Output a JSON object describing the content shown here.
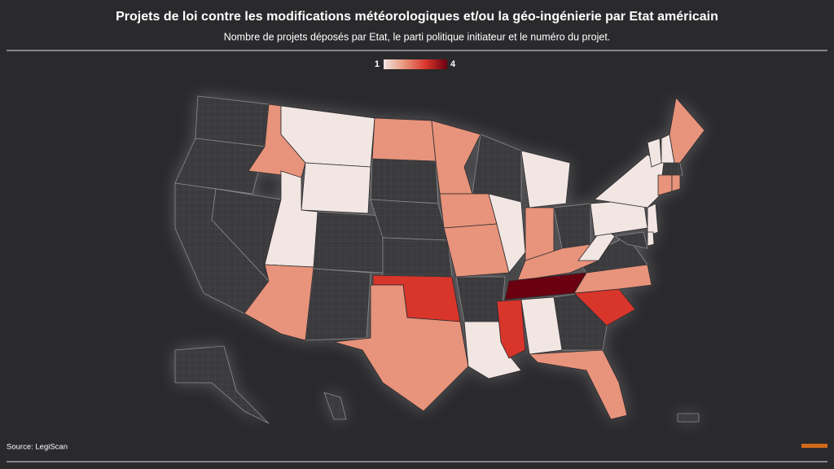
{
  "map": {
    "title": "Projets de loi contre les modifications météorologiques et/ou la géo-ingénierie par Etat américain",
    "subtitle": "Nombre de projets déposés par Etat, le parti politique initiateur et le numéro du projet.",
    "legend": {
      "ticks": [
        1,
        4
      ],
      "colors": [
        "#f2e6e2",
        "#e8937b",
        "#d8352b",
        "#6a0010"
      ]
    },
    "values": [
      2,
      1,
      1,
      1,
      2,
      2,
      3,
      2,
      2,
      2,
      2,
      1,
      1,
      1,
      2,
      2,
      4,
      3,
      1,
      2,
      3,
      2,
      1,
      1,
      1,
      1,
      1,
      2,
      2,
      2,
      1,
      1
    ],
    "source": "Source: LegiScan"
  }
}
